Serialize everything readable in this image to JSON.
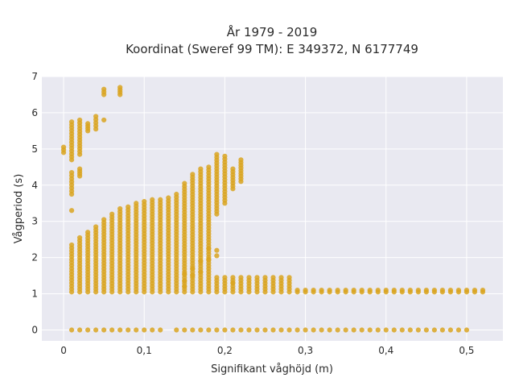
{
  "chart_data": {
    "type": "scatter",
    "title_line1": "År 1979 - 2019",
    "title_line2": "Koordinat (Sweref 99 TM): E 349372, N 6177749",
    "xlabel": "Signifikant våghöjd (m)",
    "ylabel": "Vågperiod (s)",
    "xlim": [
      -0.027,
      0.545
    ],
    "ylim": [
      -0.3,
      7.0
    ],
    "x_ticks": [
      0,
      0.1,
      0.2,
      0.3,
      0.4,
      0.5
    ],
    "x_tick_labels": [
      "0",
      "0,1",
      "0,2",
      "0,3",
      "0,4",
      "0,5"
    ],
    "y_ticks": [
      0,
      1,
      2,
      3,
      4,
      5,
      6,
      7
    ],
    "y_tick_labels": [
      "0",
      "1",
      "2",
      "3",
      "4",
      "5",
      "6",
      "7"
    ],
    "grid": true,
    "colors": {
      "marker": "#d9a521",
      "plot_bg": "#e9e9f1",
      "grid": "#ffffff"
    },
    "columns": [
      {
        "x": 0.0,
        "ranges": [
          [
            4.9,
            5.05
          ]
        ]
      },
      {
        "x": 0.01,
        "ranges": [
          [
            0.0,
            0.0
          ],
          [
            1.05,
            2.35
          ],
          [
            3.3,
            3.3
          ],
          [
            3.75,
            4.35
          ],
          [
            4.7,
            5.75
          ]
        ]
      },
      {
        "x": 0.02,
        "ranges": [
          [
            0.0,
            0.0
          ],
          [
            1.05,
            2.55
          ],
          [
            4.25,
            4.45
          ],
          [
            4.85,
            5.8
          ]
        ]
      },
      {
        "x": 0.03,
        "ranges": [
          [
            0.0,
            0.0
          ],
          [
            1.05,
            2.7
          ],
          [
            5.5,
            5.7
          ]
        ]
      },
      {
        "x": 0.04,
        "ranges": [
          [
            0.0,
            0.0
          ],
          [
            1.05,
            2.85
          ],
          [
            5.55,
            5.9
          ]
        ]
      },
      {
        "x": 0.05,
        "ranges": [
          [
            0.0,
            0.0
          ],
          [
            1.05,
            3.05
          ],
          [
            5.8,
            5.8
          ],
          [
            6.5,
            6.65
          ]
        ]
      },
      {
        "x": 0.06,
        "ranges": [
          [
            0.0,
            0.0
          ],
          [
            1.05,
            3.2
          ]
        ]
      },
      {
        "x": 0.07,
        "ranges": [
          [
            0.0,
            0.0
          ],
          [
            1.05,
            3.35
          ],
          [
            6.5,
            6.7
          ]
        ]
      },
      {
        "x": 0.08,
        "ranges": [
          [
            0.0,
            0.0
          ],
          [
            1.05,
            3.4
          ]
        ]
      },
      {
        "x": 0.09,
        "ranges": [
          [
            0.0,
            0.0
          ],
          [
            1.05,
            3.5
          ]
        ]
      },
      {
        "x": 0.1,
        "ranges": [
          [
            0.0,
            0.0
          ],
          [
            1.05,
            3.55
          ]
        ]
      },
      {
        "x": 0.11,
        "ranges": [
          [
            0.0,
            0.0
          ],
          [
            1.05,
            3.6
          ]
        ]
      },
      {
        "x": 0.12,
        "ranges": [
          [
            0.0,
            0.0
          ],
          [
            1.05,
            3.6
          ]
        ]
      },
      {
        "x": 0.13,
        "ranges": [
          [
            1.05,
            3.65
          ]
        ]
      },
      {
        "x": 0.14,
        "ranges": [
          [
            0.0,
            0.0
          ],
          [
            1.05,
            3.75
          ]
        ]
      },
      {
        "x": 0.15,
        "ranges": [
          [
            0.0,
            0.0
          ],
          [
            1.05,
            4.05
          ]
        ]
      },
      {
        "x": 0.16,
        "ranges": [
          [
            0.0,
            0.0
          ],
          [
            1.05,
            4.3
          ]
        ]
      },
      {
        "x": 0.17,
        "ranges": [
          [
            0.0,
            0.0
          ],
          [
            1.05,
            4.45
          ]
        ]
      },
      {
        "x": 0.18,
        "ranges": [
          [
            0.0,
            0.0
          ],
          [
            1.05,
            4.5
          ]
        ]
      },
      {
        "x": 0.19,
        "ranges": [
          [
            0.0,
            0.0
          ],
          [
            1.05,
            1.45
          ],
          [
            3.2,
            4.85
          ]
        ]
      },
      {
        "x": 0.2,
        "ranges": [
          [
            0.0,
            0.0
          ],
          [
            1.05,
            1.45
          ],
          [
            3.5,
            4.8
          ]
        ]
      },
      {
        "x": 0.21,
        "ranges": [
          [
            0.0,
            0.0
          ],
          [
            1.05,
            1.45
          ],
          [
            3.9,
            4.45
          ]
        ]
      },
      {
        "x": 0.22,
        "ranges": [
          [
            0.0,
            0.0
          ],
          [
            1.05,
            1.45
          ],
          [
            4.1,
            4.7
          ]
        ]
      },
      {
        "x": 0.23,
        "ranges": [
          [
            0.0,
            0.0
          ],
          [
            1.05,
            1.45
          ]
        ]
      },
      {
        "x": 0.24,
        "ranges": [
          [
            0.0,
            0.0
          ],
          [
            1.05,
            1.45
          ]
        ]
      },
      {
        "x": 0.25,
        "ranges": [
          [
            0.0,
            0.0
          ],
          [
            1.05,
            1.45
          ]
        ]
      },
      {
        "x": 0.26,
        "ranges": [
          [
            0.0,
            0.0
          ],
          [
            1.05,
            1.45
          ]
        ]
      },
      {
        "x": 0.27,
        "ranges": [
          [
            0.0,
            0.0
          ],
          [
            1.05,
            1.45
          ]
        ]
      },
      {
        "x": 0.28,
        "ranges": [
          [
            0.0,
            0.0
          ],
          [
            1.05,
            1.45
          ]
        ]
      },
      {
        "x": 0.29,
        "ranges": [
          [
            0.0,
            0.0
          ],
          [
            1.05,
            1.1
          ]
        ]
      },
      {
        "x": 0.3,
        "ranges": [
          [
            0.0,
            0.0
          ],
          [
            1.05,
            1.1
          ]
        ]
      },
      {
        "x": 0.31,
        "ranges": [
          [
            0.0,
            0.0
          ],
          [
            1.05,
            1.1
          ]
        ]
      },
      {
        "x": 0.32,
        "ranges": [
          [
            0.0,
            0.0
          ],
          [
            1.05,
            1.1
          ]
        ]
      },
      {
        "x": 0.33,
        "ranges": [
          [
            0.0,
            0.0
          ],
          [
            1.05,
            1.1
          ]
        ]
      },
      {
        "x": 0.34,
        "ranges": [
          [
            0.0,
            0.0
          ],
          [
            1.05,
            1.1
          ]
        ]
      },
      {
        "x": 0.35,
        "ranges": [
          [
            0.0,
            0.0
          ],
          [
            1.05,
            1.1
          ]
        ]
      },
      {
        "x": 0.36,
        "ranges": [
          [
            0.0,
            0.0
          ],
          [
            1.05,
            1.1
          ]
        ]
      },
      {
        "x": 0.37,
        "ranges": [
          [
            0.0,
            0.0
          ],
          [
            1.05,
            1.1
          ]
        ]
      },
      {
        "x": 0.38,
        "ranges": [
          [
            0.0,
            0.0
          ],
          [
            1.05,
            1.1
          ]
        ]
      },
      {
        "x": 0.39,
        "ranges": [
          [
            0.0,
            0.0
          ],
          [
            1.05,
            1.1
          ]
        ]
      },
      {
        "x": 0.4,
        "ranges": [
          [
            0.0,
            0.0
          ],
          [
            1.05,
            1.1
          ]
        ]
      },
      {
        "x": 0.41,
        "ranges": [
          [
            0.0,
            0.0
          ],
          [
            1.05,
            1.1
          ]
        ]
      },
      {
        "x": 0.42,
        "ranges": [
          [
            0.0,
            0.0
          ],
          [
            1.05,
            1.1
          ]
        ]
      },
      {
        "x": 0.43,
        "ranges": [
          [
            0.0,
            0.0
          ],
          [
            1.05,
            1.1
          ]
        ]
      },
      {
        "x": 0.44,
        "ranges": [
          [
            0.0,
            0.0
          ],
          [
            1.05,
            1.1
          ]
        ]
      },
      {
        "x": 0.45,
        "ranges": [
          [
            0.0,
            0.0
          ],
          [
            1.05,
            1.1
          ]
        ]
      },
      {
        "x": 0.46,
        "ranges": [
          [
            0.0,
            0.0
          ],
          [
            1.05,
            1.1
          ]
        ]
      },
      {
        "x": 0.47,
        "ranges": [
          [
            0.0,
            0.0
          ],
          [
            1.05,
            1.1
          ]
        ]
      },
      {
        "x": 0.48,
        "ranges": [
          [
            0.0,
            0.0
          ],
          [
            1.05,
            1.1
          ]
        ]
      },
      {
        "x": 0.49,
        "ranges": [
          [
            0.0,
            0.0
          ],
          [
            1.05,
            1.1
          ]
        ]
      },
      {
        "x": 0.5,
        "ranges": [
          [
            0.0,
            0.0
          ],
          [
            1.05,
            1.1
          ]
        ]
      },
      {
        "x": 0.51,
        "ranges": [
          [
            1.05,
            1.1
          ]
        ]
      },
      {
        "x": 0.52,
        "ranges": [
          [
            1.05,
            1.1
          ]
        ]
      }
    ],
    "points": [
      {
        "x": 0.15,
        "y": 1.2
      },
      {
        "x": 0.15,
        "y": 1.35
      },
      {
        "x": 0.15,
        "y": 1.55
      },
      {
        "x": 0.16,
        "y": 1.5
      },
      {
        "x": 0.16,
        "y": 1.7
      },
      {
        "x": 0.17,
        "y": 1.6
      },
      {
        "x": 0.17,
        "y": 1.9
      },
      {
        "x": 0.18,
        "y": 1.95
      },
      {
        "x": 0.18,
        "y": 2.25
      },
      {
        "x": 0.19,
        "y": 2.05
      },
      {
        "x": 0.19,
        "y": 2.2
      },
      {
        "x": 0.21,
        "y": 1.3
      }
    ]
  }
}
